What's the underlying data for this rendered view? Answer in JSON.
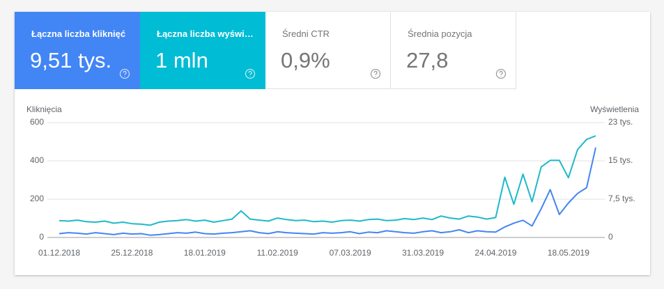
{
  "cards": [
    {
      "label": "Łączna liczba kliknięć",
      "value": "9,51 tys."
    },
    {
      "label": "Łączna liczba wyświ…",
      "value": "1 mln"
    },
    {
      "label": "Średni CTR",
      "value": "0,9%"
    },
    {
      "label": "Średnia pozycja",
      "value": "27,8"
    }
  ],
  "chart_data": {
    "type": "line",
    "x": [
      "01.12.2018",
      "04.12.2018",
      "07.12.2018",
      "10.12.2018",
      "13.12.2018",
      "16.12.2018",
      "19.12.2018",
      "22.12.2018",
      "25.12.2018",
      "28.12.2018",
      "31.12.2018",
      "03.01.2019",
      "06.01.2019",
      "09.01.2019",
      "12.01.2019",
      "15.01.2019",
      "18.01.2019",
      "21.01.2019",
      "24.01.2019",
      "27.01.2019",
      "30.01.2019",
      "02.02.2019",
      "05.02.2019",
      "08.02.2019",
      "11.02.2019",
      "14.02.2019",
      "17.02.2019",
      "20.02.2019",
      "23.02.2019",
      "26.02.2019",
      "01.03.2019",
      "04.03.2019",
      "07.03.2019",
      "10.03.2019",
      "13.03.2019",
      "16.03.2019",
      "19.03.2019",
      "22.03.2019",
      "25.03.2019",
      "28.03.2019",
      "31.03.2019",
      "03.04.2019",
      "06.04.2019",
      "09.04.2019",
      "12.04.2019",
      "15.04.2019",
      "18.04.2019",
      "21.04.2019",
      "24.04.2019",
      "27.04.2019",
      "30.04.2019",
      "03.05.2019",
      "06.05.2019",
      "09.05.2019",
      "12.05.2019",
      "15.05.2019",
      "18.05.2019",
      "21.05.2019",
      "24.05.2019",
      "27.05.2019"
    ],
    "series": [
      {
        "name": "Kliknięcia",
        "color": "#4285f4",
        "values": [
          20,
          25,
          22,
          18,
          25,
          20,
          15,
          22,
          18,
          20,
          12,
          15,
          20,
          25,
          22,
          28,
          20,
          18,
          22,
          25,
          30,
          35,
          25,
          20,
          30,
          25,
          22,
          20,
          18,
          25,
          22,
          25,
          30,
          20,
          28,
          25,
          35,
          30,
          25,
          22,
          30,
          35,
          25,
          30,
          40,
          25,
          35,
          30,
          28,
          55,
          75,
          90,
          60,
          150,
          250,
          120,
          180,
          230,
          260,
          470
        ]
      },
      {
        "name": "Wyświetlenia",
        "color": "#1eb9c8",
        "axis": "y2",
        "values": [
          3300,
          3200,
          3400,
          3100,
          3000,
          3200,
          2800,
          3000,
          2700,
          2600,
          2400,
          3000,
          3200,
          3300,
          3500,
          3200,
          3400,
          3000,
          3300,
          3600,
          5200,
          3600,
          3400,
          3200,
          3800,
          3500,
          3300,
          3400,
          3100,
          3200,
          3000,
          3300,
          3400,
          3200,
          3500,
          3600,
          3300,
          3400,
          3700,
          3500,
          3800,
          3500,
          4200,
          3800,
          3600,
          4200,
          4000,
          3600,
          3900,
          11800,
          6500,
          12400,
          7000,
          13800,
          15100,
          15100,
          11700,
          17200,
          19200,
          19900
        ]
      }
    ],
    "ylim": [
      0,
      600
    ],
    "yticks": [
      0,
      200,
      400,
      600
    ],
    "y2lim": [
      0,
      22500
    ],
    "y2ticks": [
      0,
      {
        "value": 7500,
        "label": "7,5 tys."
      },
      {
        "value": 15000,
        "label": "15 tys."
      },
      {
        "value": 22500,
        "label": "23 tys."
      }
    ],
    "xticks": [
      "01.12.2018",
      "25.12.2018",
      "18.01.2019",
      "11.02.2019",
      "07.03.2019",
      "31.03.2019",
      "24.04.2019",
      "18.05.2019"
    ],
    "grid": true
  }
}
